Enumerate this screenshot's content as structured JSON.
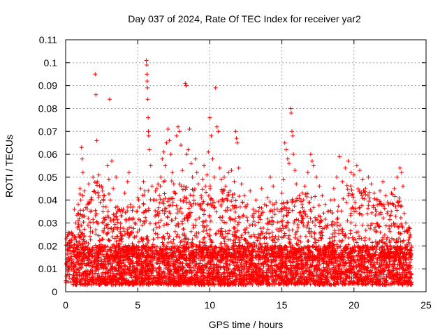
{
  "chart_data": {
    "type": "scatter",
    "title": "Day 037 of 2024, Rate Of TEC Index for receiver yar2",
    "xlabel": "GPS time / hours",
    "ylabel": "ROTI / TECUs",
    "xlim": [
      0,
      25
    ],
    "ylim": [
      0,
      0.11
    ],
    "x_ticks": [
      0,
      5,
      10,
      15,
      20,
      25
    ],
    "x_tick_labels": [
      "0",
      "5",
      "10",
      "15",
      "20",
      "25"
    ],
    "y_ticks": [
      0,
      0.01,
      0.02,
      0.03,
      0.04,
      0.05,
      0.06,
      0.07,
      0.08,
      0.09,
      0.1,
      0.11
    ],
    "y_tick_labels": [
      "0",
      "0.01",
      "0.02",
      "0.03",
      "0.04",
      "0.05",
      "0.06",
      "0.07",
      "0.08",
      "0.09",
      "0.1",
      "0.11"
    ],
    "grid": true,
    "marker": "+",
    "color": "#ff0000",
    "series": [
      {
        "name": "ROTI",
        "points": [
          [
            0.05,
            0.012
          ],
          [
            0.1,
            0.024
          ],
          [
            0.15,
            0.009
          ],
          [
            0.2,
            0.015
          ],
          [
            0.25,
            0.006
          ],
          [
            0.3,
            0.018
          ],
          [
            0.35,
            0.011
          ],
          [
            0.4,
            0.02
          ],
          [
            0.5,
            0.013
          ],
          [
            0.6,
            0.036
          ],
          [
            0.7,
            0.03
          ],
          [
            0.75,
            0.022
          ],
          [
            0.8,
            0.016
          ],
          [
            0.85,
            0.01
          ],
          [
            0.9,
            0.034
          ],
          [
            0.95,
            0.027
          ],
          [
            1.0,
            0.045
          ],
          [
            1.05,
            0.04
          ],
          [
            1.1,
            0.063
          ],
          [
            1.15,
            0.058
          ],
          [
            1.2,
            0.052
          ],
          [
            1.25,
            0.033
          ],
          [
            1.3,
            0.044
          ],
          [
            1.35,
            0.021
          ],
          [
            1.4,
            0.015
          ],
          [
            1.5,
            0.038
          ],
          [
            1.55,
            0.029
          ],
          [
            1.6,
            0.047
          ],
          [
            1.7,
            0.035
          ],
          [
            1.8,
            0.041
          ],
          [
            1.9,
            0.05
          ],
          [
            2.0,
            0.044
          ],
          [
            2.05,
            0.095
          ],
          [
            2.1,
            0.086
          ],
          [
            2.15,
            0.066
          ],
          [
            2.2,
            0.048
          ],
          [
            2.3,
            0.051
          ],
          [
            2.4,
            0.039
          ],
          [
            2.5,
            0.046
          ],
          [
            2.6,
            0.03
          ],
          [
            2.7,
            0.042
          ],
          [
            2.8,
            0.037
          ],
          [
            2.9,
            0.055
          ],
          [
            3.0,
            0.049
          ],
          [
            3.05,
            0.084
          ],
          [
            3.1,
            0.04
          ],
          [
            3.2,
            0.057
          ],
          [
            3.3,
            0.045
          ],
          [
            3.4,
            0.033
          ],
          [
            3.5,
            0.05
          ],
          [
            3.6,
            0.024
          ],
          [
            3.7,
            0.019
          ],
          [
            3.8,
            0.028
          ],
          [
            3.9,
            0.022
          ],
          [
            4.0,
            0.036
          ],
          [
            4.1,
            0.043
          ],
          [
            4.2,
            0.031
          ],
          [
            4.3,
            0.048
          ],
          [
            4.4,
            0.052
          ],
          [
            4.5,
            0.038
          ],
          [
            4.6,
            0.026
          ],
          [
            4.7,
            0.02
          ],
          [
            4.8,
            0.03
          ],
          [
            4.9,
            0.035
          ],
          [
            5.0,
            0.041
          ],
          [
            5.1,
            0.037
          ],
          [
            5.2,
            0.045
          ],
          [
            5.3,
            0.029
          ],
          [
            5.4,
            0.048
          ],
          [
            5.5,
            0.044
          ],
          [
            5.6,
            0.101
          ],
          [
            5.62,
            0.099
          ],
          [
            5.64,
            0.095
          ],
          [
            5.66,
            0.092
          ],
          [
            5.68,
            0.089
          ],
          [
            5.7,
            0.084
          ],
          [
            5.72,
            0.076
          ],
          [
            5.74,
            0.07
          ],
          [
            5.76,
            0.068
          ],
          [
            5.8,
            0.062
          ],
          [
            5.9,
            0.055
          ],
          [
            6.0,
            0.046
          ],
          [
            6.1,
            0.04
          ],
          [
            6.2,
            0.033
          ],
          [
            6.3,
            0.028
          ],
          [
            6.4,
            0.035
          ],
          [
            6.5,
            0.042
          ],
          [
            6.6,
            0.05
          ],
          [
            6.7,
            0.058
          ],
          [
            6.8,
            0.061
          ],
          [
            6.9,
            0.055
          ],
          [
            7.0,
            0.065
          ],
          [
            7.1,
            0.071
          ],
          [
            7.2,
            0.066
          ],
          [
            7.3,
            0.06
          ],
          [
            7.4,
            0.052
          ],
          [
            7.5,
            0.047
          ],
          [
            7.6,
            0.043
          ],
          [
            7.7,
            0.068
          ],
          [
            7.8,
            0.072
          ],
          [
            7.9,
            0.07
          ],
          [
            8.0,
            0.064
          ],
          [
            8.1,
            0.053
          ],
          [
            8.2,
            0.046
          ],
          [
            8.3,
            0.091
          ],
          [
            8.35,
            0.09
          ],
          [
            8.4,
            0.06
          ],
          [
            8.5,
            0.062
          ],
          [
            8.6,
            0.071
          ],
          [
            8.7,
            0.056
          ],
          [
            8.8,
            0.05
          ],
          [
            8.9,
            0.044
          ],
          [
            9.0,
            0.058
          ],
          [
            9.1,
            0.052
          ],
          [
            9.2,
            0.047
          ],
          [
            9.3,
            0.038
          ],
          [
            9.4,
            0.042
          ],
          [
            9.5,
            0.049
          ],
          [
            9.6,
            0.055
          ],
          [
            9.7,
            0.046
          ],
          [
            9.8,
            0.051
          ],
          [
            9.9,
            0.061
          ],
          [
            10.0,
            0.076
          ],
          [
            10.1,
            0.068
          ],
          [
            10.2,
            0.058
          ],
          [
            10.3,
            0.05
          ],
          [
            10.4,
            0.089
          ],
          [
            10.5,
            0.072
          ],
          [
            10.6,
            0.07
          ],
          [
            10.7,
            0.054
          ],
          [
            10.8,
            0.049
          ],
          [
            10.9,
            0.043
          ],
          [
            11.0,
            0.05
          ],
          [
            11.1,
            0.046
          ],
          [
            11.2,
            0.04
          ],
          [
            11.3,
            0.052
          ],
          [
            11.4,
            0.044
          ],
          [
            11.5,
            0.053
          ],
          [
            11.6,
            0.041
          ],
          [
            11.7,
            0.048
          ],
          [
            11.8,
            0.07
          ],
          [
            11.85,
            0.067
          ],
          [
            11.9,
            0.065
          ],
          [
            12.0,
            0.054
          ],
          [
            12.2,
            0.047
          ],
          [
            12.4,
            0.042
          ],
          [
            12.6,
            0.038
          ],
          [
            12.8,
            0.044
          ],
          [
            13.0,
            0.036
          ],
          [
            13.2,
            0.04
          ],
          [
            13.4,
            0.033
          ],
          [
            13.6,
            0.045
          ],
          [
            13.8,
            0.038
          ],
          [
            14.0,
            0.041
          ],
          [
            14.2,
            0.05
          ],
          [
            14.4,
            0.046
          ],
          [
            14.6,
            0.039
          ],
          [
            14.8,
            0.035
          ],
          [
            15.0,
            0.043
          ],
          [
            15.1,
            0.049
          ],
          [
            15.2,
            0.065
          ],
          [
            15.3,
            0.062
          ],
          [
            15.4,
            0.058
          ],
          [
            15.5,
            0.056
          ],
          [
            15.6,
            0.08
          ],
          [
            15.65,
            0.078
          ],
          [
            15.7,
            0.07
          ],
          [
            15.75,
            0.068
          ],
          [
            15.8,
            0.06
          ],
          [
            15.9,
            0.053
          ],
          [
            16.0,
            0.047
          ],
          [
            16.2,
            0.042
          ],
          [
            16.4,
            0.038
          ],
          [
            16.6,
            0.046
          ],
          [
            16.8,
            0.052
          ],
          [
            17.0,
            0.06
          ],
          [
            17.1,
            0.057
          ],
          [
            17.2,
            0.055
          ],
          [
            17.4,
            0.05
          ],
          [
            17.6,
            0.046
          ],
          [
            17.8,
            0.042
          ],
          [
            18.0,
            0.038
          ],
          [
            18.2,
            0.035
          ],
          [
            18.4,
            0.04
          ],
          [
            18.6,
            0.045
          ],
          [
            18.8,
            0.05
          ],
          [
            19.0,
            0.059
          ],
          [
            19.2,
            0.048
          ],
          [
            19.4,
            0.054
          ],
          [
            19.6,
            0.057
          ],
          [
            19.8,
            0.052
          ],
          [
            20.0,
            0.051
          ],
          [
            20.2,
            0.055
          ],
          [
            20.4,
            0.053
          ],
          [
            20.6,
            0.049
          ],
          [
            20.8,
            0.045
          ],
          [
            21.0,
            0.05
          ],
          [
            21.2,
            0.047
          ],
          [
            21.4,
            0.043
          ],
          [
            21.6,
            0.04
          ],
          [
            21.8,
            0.044
          ],
          [
            22.0,
            0.048
          ],
          [
            22.2,
            0.042
          ],
          [
            22.4,
            0.038
          ],
          [
            22.6,
            0.043
          ],
          [
            22.8,
            0.045
          ],
          [
            23.0,
            0.05
          ],
          [
            23.2,
            0.054
          ],
          [
            23.3,
            0.052
          ],
          [
            23.4,
            0.046
          ],
          [
            23.6,
            0.03
          ],
          [
            23.8,
            0.028
          ],
          [
            23.9,
            0.025
          ],
          [
            24.0,
            0.02
          ]
        ],
        "dense_band": {
          "hours_start": 0.5,
          "hours_end": 24.0,
          "baseline_min": 0.003,
          "baseline_max": 0.02,
          "count": 3800
        },
        "mid_spread": {
          "count": 1600,
          "envelope": [
            [
              0.0,
              0.018
            ],
            [
              0.5,
              0.02
            ],
            [
              1.0,
              0.045
            ],
            [
              2.0,
              0.048
            ],
            [
              3.0,
              0.045
            ],
            [
              4.0,
              0.035
            ],
            [
              5.0,
              0.042
            ],
            [
              6.0,
              0.045
            ],
            [
              7.0,
              0.05
            ],
            [
              8.0,
              0.048
            ],
            [
              9.0,
              0.045
            ],
            [
              10.0,
              0.048
            ],
            [
              11.0,
              0.045
            ],
            [
              12.0,
              0.042
            ],
            [
              13.0,
              0.035
            ],
            [
              14.0,
              0.04
            ],
            [
              15.0,
              0.04
            ],
            [
              16.0,
              0.042
            ],
            [
              17.0,
              0.045
            ],
            [
              18.0,
              0.035
            ],
            [
              19.0,
              0.045
            ],
            [
              20.0,
              0.048
            ],
            [
              21.0,
              0.045
            ],
            [
              22.0,
              0.04
            ],
            [
              23.0,
              0.045
            ],
            [
              24.0,
              0.025
            ]
          ]
        }
      }
    ]
  }
}
